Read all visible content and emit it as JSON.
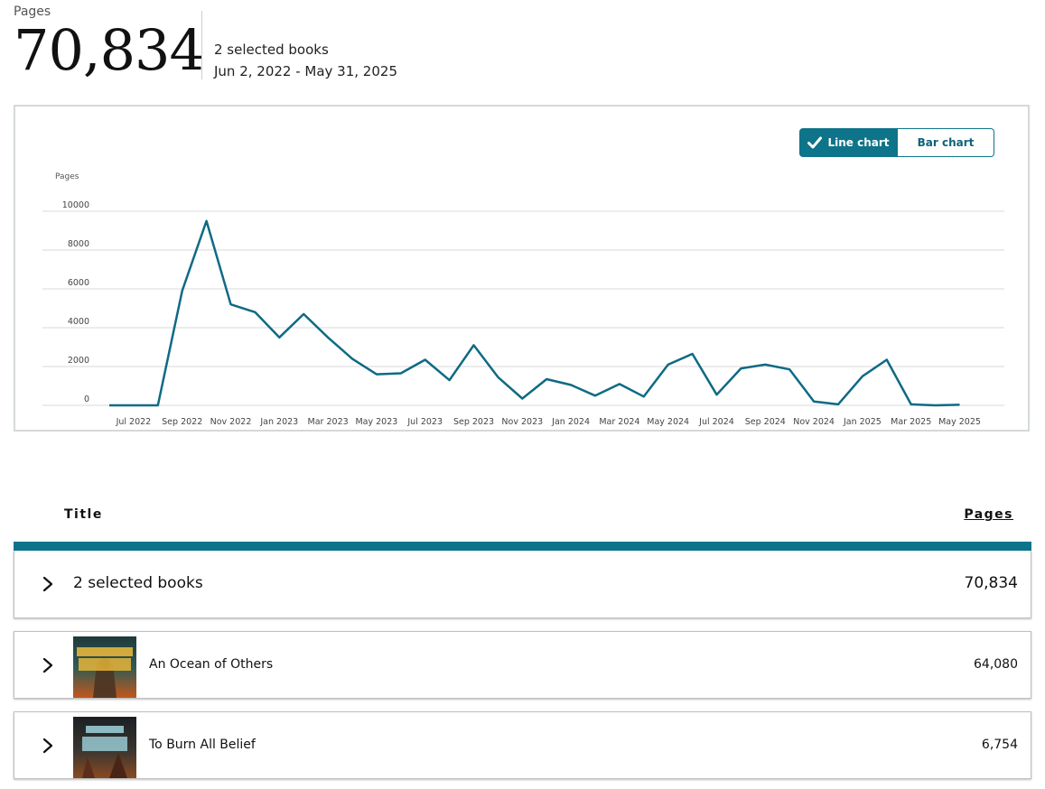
{
  "summary": {
    "label": "Pages",
    "total": "70,834",
    "selected_books": "2 selected books",
    "date_range": "Jun 2, 2022 - May 31, 2025"
  },
  "chart_toggle": {
    "line_label": "Line chart",
    "bar_label": "Bar chart",
    "active": "line"
  },
  "colors": {
    "accent": "#0e7489",
    "line": "#0e6a85",
    "grid": "#d9d9d9"
  },
  "chart_data": {
    "type": "line",
    "ylabel": "Pages",
    "ylim": [
      0,
      10000
    ],
    "yticks": [
      "0",
      "2000",
      "4000",
      "6000",
      "8000",
      "10000"
    ],
    "grid": true,
    "x": [
      "Jun 2022",
      "Jul 2022",
      "Aug 2022",
      "Sep 2022",
      "Oct 2022",
      "Nov 2022",
      "Dec 2022",
      "Jan 2023",
      "Feb 2023",
      "Mar 2023",
      "Apr 2023",
      "May 2023",
      "Jun 2023",
      "Jul 2023",
      "Aug 2023",
      "Sep 2023",
      "Oct 2023",
      "Nov 2023",
      "Dec 2023",
      "Jan 2024",
      "Feb 2024",
      "Mar 2024",
      "Apr 2024",
      "May 2024",
      "Jun 2024",
      "Jul 2024",
      "Aug 2024",
      "Sep 2024",
      "Oct 2024",
      "Nov 2024",
      "Dec 2024",
      "Jan 2025",
      "Feb 2025",
      "Mar 2025",
      "Apr 2025",
      "May 2025"
    ],
    "xtick_labels": [
      "",
      "Jul 2022",
      "",
      "Sep 2022",
      "",
      "Nov 2022",
      "",
      "Jan 2023",
      "",
      "Mar 2023",
      "",
      "May 2023",
      "",
      "Jul 2023",
      "",
      "Sep 2023",
      "",
      "Nov 2023",
      "",
      "Jan 2024",
      "",
      "Mar 2024",
      "",
      "May 2024",
      "",
      "Jul 2024",
      "",
      "Sep 2024",
      "",
      "Nov 2024",
      "",
      "Jan 2025",
      "",
      "Mar 2025",
      "",
      "May 2025"
    ],
    "series": [
      {
        "values": [
          0,
          0,
          0,
          5900,
          9500,
          5200,
          4800,
          3500,
          4700,
          3500,
          2400,
          1600,
          1650,
          2350,
          1300,
          3100,
          1450,
          350,
          1350,
          1050,
          500,
          1100,
          450,
          2100,
          2650,
          550,
          1900,
          2100,
          1850,
          200,
          50,
          1500,
          2350,
          50,
          0,
          30
        ]
      }
    ]
  },
  "table": {
    "col_title": "Title",
    "col_pages": "Pages",
    "total_row": {
      "label": "2 selected books",
      "pages": "70,834"
    },
    "books": [
      {
        "title": "An Ocean of Others",
        "pages": "64,080",
        "cover_author": "JEREMY SCOTT GROVES",
        "cover_text": "AN OCEAN OF OTHERS"
      },
      {
        "title": "To Burn All Belief",
        "pages": "6,754",
        "cover_author": "JEREMY SCOTT GROVES",
        "cover_text": "TO BURN ALL BELIEF"
      }
    ]
  }
}
